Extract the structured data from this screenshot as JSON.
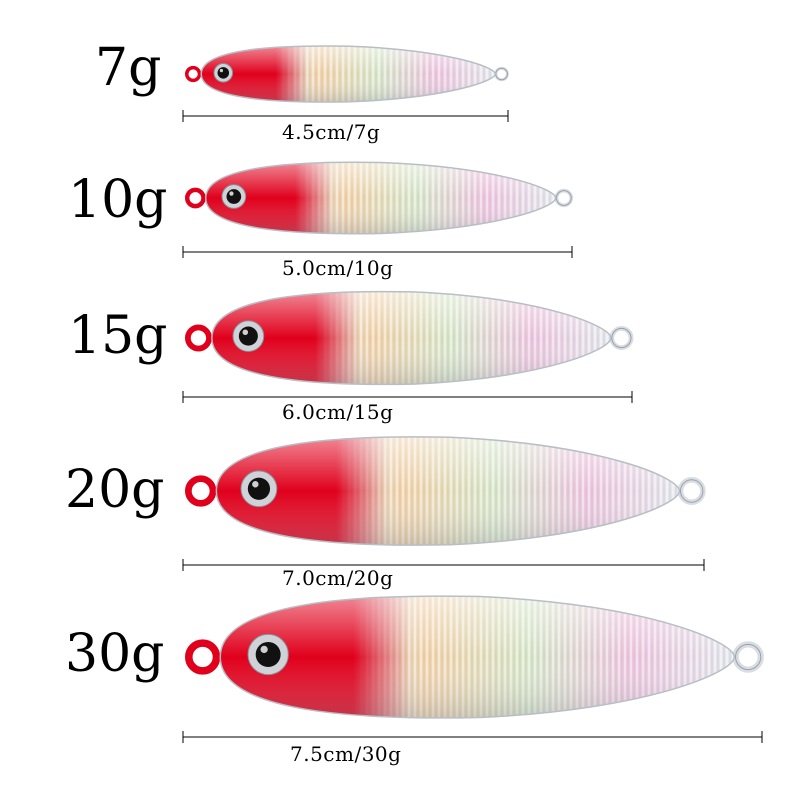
{
  "lures": [
    {
      "weight": "7g",
      "size": "4.5cm/7g"
    },
    {
      "weight": "10g",
      "size": "5.0cm/10g"
    },
    {
      "weight": "15g",
      "size": "6.0cm/15g"
    },
    {
      "weight": "20g",
      "size": "7.0cm/20g"
    },
    {
      "weight": "30g",
      "size": "7.5cm/30g"
    }
  ],
  "colors": {
    "head": "#e0001c",
    "head_dark": "#b80012",
    "body_silver": "#d9dde3",
    "eye_ring": "#cfd3d8",
    "pupil": "#111111",
    "line": "#000000",
    "text": "#000000"
  }
}
